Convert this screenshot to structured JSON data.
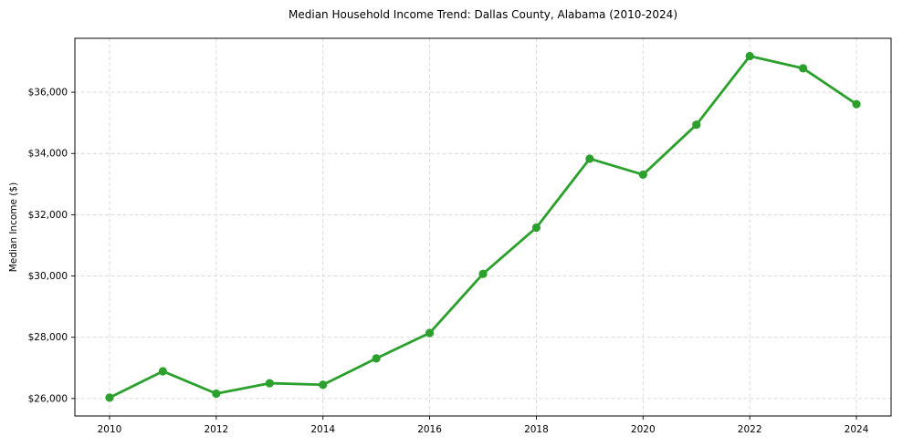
{
  "page": {
    "background": "#ffffff"
  },
  "chart_data": {
    "type": "line",
    "title": "Median Household Income Trend: Dallas County, Alabama (2010-2024)",
    "xlabel": "",
    "ylabel": "Median Income ($)",
    "x": [
      2010,
      2011,
      2012,
      2013,
      2014,
      2015,
      2016,
      2017,
      2018,
      2019,
      2020,
      2021,
      2022,
      2023,
      2024
    ],
    "series": [
      {
        "name": "Median Household Income",
        "values": [
          26030,
          26890,
          26160,
          26500,
          26450,
          27310,
          28140,
          30070,
          31580,
          33830,
          33310,
          34940,
          37180,
          36780,
          35610
        ],
        "color": "#2ca02c"
      }
    ],
    "x_tick_values": [
      2010,
      2012,
      2014,
      2016,
      2018,
      2020,
      2022,
      2024
    ],
    "x_tick_labels": [
      "2010",
      "2012",
      "2014",
      "2016",
      "2018",
      "2020",
      "2022",
      "2024"
    ],
    "y_tick_values": [
      26000,
      28000,
      30000,
      32000,
      34000,
      36000
    ],
    "y_tick_labels": [
      "$26,000",
      "$28,000",
      "$30,000",
      "$32,000",
      "$34,000",
      "$36,000"
    ],
    "xlim": [
      2009.35,
      2024.65
    ],
    "ylim": [
      25430,
      37760
    ],
    "grid": true,
    "grid_color": "#d6d6d6",
    "axis_color": "#000000",
    "legend": "none",
    "marker": "circle",
    "marker_radius": 4.6,
    "line_width": 2.8
  }
}
